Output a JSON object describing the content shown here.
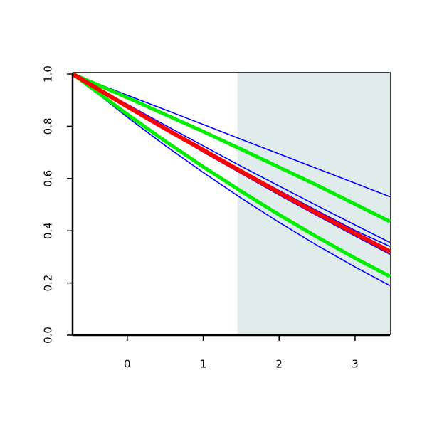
{
  "chart_data": {
    "type": "line",
    "x": [
      -0.72,
      0,
      0.5,
      1,
      1.5,
      2,
      2.5,
      3,
      3.46
    ],
    "series": [
      {
        "color": "#0000ff",
        "width": 1.6,
        "values": [
          1.0,
          0.919,
          0.863,
          0.807,
          0.75,
          0.694,
          0.638,
          0.582,
          0.53
        ]
      },
      {
        "color": "#0000ff",
        "width": 1.6,
        "values": [
          1.0,
          0.835,
          0.726,
          0.623,
          0.525,
          0.432,
          0.344,
          0.261,
          0.19
        ]
      },
      {
        "color": "#0000ff",
        "width": 1.6,
        "values": [
          1.0,
          0.884,
          0.804,
          0.725,
          0.647,
          0.571,
          0.496,
          0.422,
          0.355
        ]
      },
      {
        "color": "#0000ff",
        "width": 1.6,
        "values": [
          1.0,
          0.878,
          0.796,
          0.713,
          0.633,
          0.554,
          0.477,
          0.401,
          0.34
        ]
      },
      {
        "color": "#0000ff",
        "width": 1.6,
        "values": [
          1.0,
          0.872,
          0.787,
          0.701,
          0.619,
          0.537,
          0.458,
          0.38,
          0.31
        ]
      },
      {
        "color": "#00ee00",
        "width": 5,
        "values": [
          1.0,
          0.91,
          0.845,
          0.78,
          0.712,
          0.643,
          0.574,
          0.502,
          0.435
        ]
      },
      {
        "color": "#00ee00",
        "width": 5,
        "values": [
          1.0,
          0.846,
          0.743,
          0.645,
          0.551,
          0.461,
          0.376,
          0.295,
          0.225
        ]
      },
      {
        "color": "#ff0000",
        "width": 6,
        "values": [
          1.0,
          0.876,
          0.791,
          0.709,
          0.627,
          0.546,
          0.467,
          0.39,
          0.32
        ]
      }
    ],
    "shaded_region": {
      "x": [
        1.45,
        3.46
      ],
      "color": "#dfeceb"
    },
    "xlim": [
      -0.72,
      3.46
    ],
    "ylim": [
      0,
      1
    ],
    "xticks": [
      0,
      1,
      2,
      3
    ],
    "yticks": [
      {
        "value": 0,
        "label": "0.0"
      },
      0.2,
      0.4,
      0.6,
      0.8,
      {
        "value": 1,
        "label": "1.0"
      }
    ]
  }
}
